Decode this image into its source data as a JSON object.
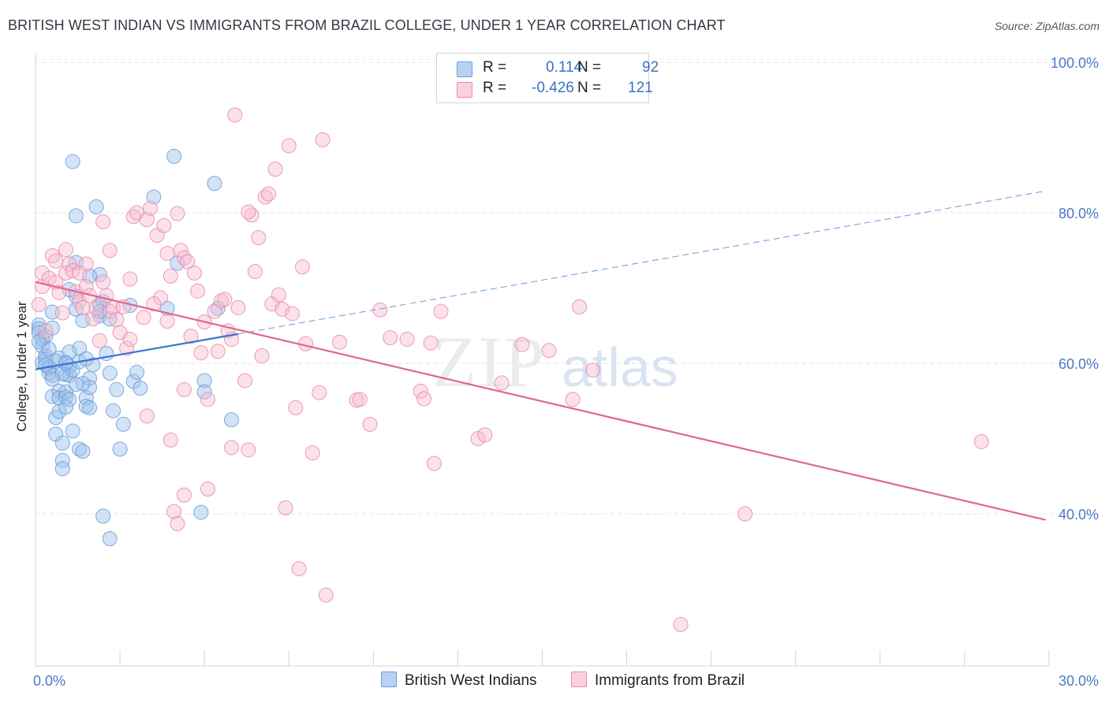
{
  "title": "BRITISH WEST INDIAN VS IMMIGRANTS FROM BRAZIL COLLEGE, UNDER 1 YEAR CORRELATION CHART",
  "source": "Source: ZipAtlas.com",
  "watermark": {
    "zip": "ZIP",
    "atlas": "atlas"
  },
  "legend": {
    "r_label": "R =",
    "n_label": "N =",
    "series": [
      {
        "r": "0.114",
        "n": "92",
        "color": "#9cc0ec",
        "stroke": "#6a9bdb"
      },
      {
        "r": "-0.426",
        "n": "121",
        "color": "#f7bcd0",
        "stroke": "#e98aa9"
      }
    ]
  },
  "bottom_legend": [
    "British West Indians",
    "Immigrants from Brazil"
  ],
  "chart_data": {
    "type": "scatter",
    "title": "BRITISH WEST INDIAN VS IMMIGRANTS FROM BRAZIL COLLEGE, UNDER 1 YEAR CORRELATION CHART",
    "xlabel": "",
    "ylabel": "College, Under 1 year",
    "xlim": [
      0,
      30
    ],
    "ylim": [
      20,
      102
    ],
    "x_tick_labels": [
      "0.0%",
      "30.0%"
    ],
    "y_ticks": [
      40,
      60,
      80,
      100
    ],
    "y_tick_labels": [
      "40.0%",
      "60.0%",
      "80.0%",
      "100.0%"
    ],
    "grid": true,
    "legend_position": "top-center",
    "series": [
      {
        "name": "British West Indians",
        "color": "#6a9bdb",
        "fill": "#9cc0ec",
        "trend": {
          "x": [
            0,
            6
          ],
          "y": [
            59.2,
            63.9
          ],
          "dashed_extension": {
            "x": [
              6,
              29.9
            ],
            "y": [
              63.9,
              82.9
            ]
          }
        },
        "points": [
          [
            0.1,
            65.1
          ],
          [
            0.1,
            64.6
          ],
          [
            0.1,
            64.1
          ],
          [
            0.2,
            62.3
          ],
          [
            0.2,
            60.1
          ],
          [
            0.3,
            63.6
          ],
          [
            0.3,
            61.0
          ],
          [
            0.3,
            60.5
          ],
          [
            0.4,
            59.4
          ],
          [
            0.4,
            58.7
          ],
          [
            0.5,
            64.7
          ],
          [
            0.5,
            58.4
          ],
          [
            0.5,
            55.6
          ],
          [
            0.6,
            52.8
          ],
          [
            0.6,
            50.6
          ],
          [
            0.7,
            60.7
          ],
          [
            0.7,
            56.3
          ],
          [
            0.7,
            55.4
          ],
          [
            0.7,
            53.6
          ],
          [
            0.8,
            49.4
          ],
          [
            0.8,
            47.1
          ],
          [
            0.8,
            46.0
          ],
          [
            0.9,
            60.1
          ],
          [
            0.9,
            58.5
          ],
          [
            0.9,
            56.2
          ],
          [
            0.9,
            55.5
          ],
          [
            0.9,
            54.2
          ],
          [
            1.0,
            59.6
          ],
          [
            1.0,
            58.4
          ],
          [
            1.0,
            55.2
          ],
          [
            1.1,
            51.0
          ],
          [
            1.1,
            59.1
          ],
          [
            1.2,
            67.2
          ],
          [
            1.2,
            68.9
          ],
          [
            1.2,
            73.4
          ],
          [
            1.3,
            62.0
          ],
          [
            1.3,
            60.2
          ],
          [
            1.3,
            48.6
          ],
          [
            1.4,
            65.7
          ],
          [
            1.4,
            48.3
          ],
          [
            1.5,
            55.4
          ],
          [
            1.5,
            54.3
          ],
          [
            1.6,
            58.0
          ],
          [
            1.6,
            56.8
          ],
          [
            1.6,
            54.1
          ],
          [
            1.7,
            59.8
          ],
          [
            1.8,
            80.8
          ],
          [
            1.9,
            71.8
          ],
          [
            1.9,
            67.8
          ],
          [
            1.9,
            66.3
          ],
          [
            2.0,
            68.2
          ],
          [
            2.1,
            61.3
          ],
          [
            2.2,
            58.7
          ],
          [
            2.2,
            65.9
          ],
          [
            2.3,
            53.7
          ],
          [
            2.4,
            56.5
          ],
          [
            2.5,
            48.6
          ],
          [
            2.6,
            51.9
          ],
          [
            2.8,
            67.7
          ],
          [
            2.9,
            57.6
          ],
          [
            3.0,
            58.8
          ],
          [
            3.1,
            56.7
          ],
          [
            3.5,
            82.1
          ],
          [
            3.9,
            67.3
          ],
          [
            4.1,
            87.5
          ],
          [
            4.2,
            73.3
          ],
          [
            4.9,
            40.2
          ],
          [
            5.0,
            57.7
          ],
          [
            5.0,
            56.2
          ],
          [
            5.3,
            83.9
          ],
          [
            5.4,
            67.3
          ],
          [
            5.8,
            52.5
          ],
          [
            1.2,
            79.6
          ],
          [
            1.1,
            86.8
          ],
          [
            0.5,
            66.8
          ],
          [
            1.0,
            69.8
          ],
          [
            1.4,
            57.3
          ],
          [
            1.6,
            71.6
          ],
          [
            2.0,
            39.7
          ],
          [
            2.2,
            36.7
          ],
          [
            0.2,
            63.2
          ],
          [
            0.6,
            60.3
          ],
          [
            0.8,
            58.6
          ],
          [
            1.2,
            57.2
          ],
          [
            1.0,
            61.5
          ],
          [
            0.3,
            59.8
          ],
          [
            0.4,
            61.9
          ],
          [
            1.5,
            60.6
          ],
          [
            1.9,
            66.9
          ],
          [
            0.1,
            62.9
          ],
          [
            0.9,
            60.0
          ],
          [
            0.5,
            57.9
          ]
        ]
      },
      {
        "name": "Immigrants from Brazil",
        "color": "#e98aa9",
        "fill": "#f7bcd0",
        "trend": {
          "x": [
            0,
            29.9
          ],
          "y": [
            70.8,
            39.2
          ]
        },
        "points": [
          [
            0.1,
            67.8
          ],
          [
            0.2,
            70.2
          ],
          [
            0.2,
            72.0
          ],
          [
            0.3,
            64.3
          ],
          [
            0.4,
            71.3
          ],
          [
            0.5,
            74.3
          ],
          [
            0.6,
            70.8
          ],
          [
            0.7,
            69.4
          ],
          [
            0.8,
            66.7
          ],
          [
            0.9,
            72.0
          ],
          [
            1.0,
            73.2
          ],
          [
            1.1,
            72.3
          ],
          [
            1.2,
            69.5
          ],
          [
            1.3,
            68.2
          ],
          [
            1.4,
            67.4
          ],
          [
            1.5,
            70.2
          ],
          [
            1.6,
            69.0
          ],
          [
            1.7,
            65.9
          ],
          [
            1.8,
            67.3
          ],
          [
            1.9,
            63.0
          ],
          [
            2.0,
            70.8
          ],
          [
            2.1,
            69.0
          ],
          [
            2.2,
            66.9
          ],
          [
            2.3,
            67.4
          ],
          [
            2.4,
            65.8
          ],
          [
            2.5,
            64.1
          ],
          [
            2.6,
            67.5
          ],
          [
            2.7,
            62.0
          ],
          [
            2.8,
            71.2
          ],
          [
            2.9,
            79.5
          ],
          [
            3.0,
            80.0
          ],
          [
            3.2,
            66.1
          ],
          [
            3.3,
            79.1
          ],
          [
            3.4,
            80.6
          ],
          [
            3.6,
            77.0
          ],
          [
            3.7,
            68.7
          ],
          [
            3.8,
            78.3
          ],
          [
            3.9,
            65.6
          ],
          [
            4.0,
            71.6
          ],
          [
            4.1,
            40.3
          ],
          [
            4.2,
            79.9
          ],
          [
            4.3,
            75.0
          ],
          [
            4.4,
            74.0
          ],
          [
            4.5,
            73.5
          ],
          [
            4.6,
            63.6
          ],
          [
            4.7,
            72.0
          ],
          [
            4.8,
            69.6
          ],
          [
            4.9,
            61.4
          ],
          [
            5.0,
            65.5
          ],
          [
            5.1,
            55.2
          ],
          [
            5.3,
            66.9
          ],
          [
            5.4,
            61.6
          ],
          [
            5.5,
            68.3
          ],
          [
            5.6,
            68.5
          ],
          [
            5.7,
            64.3
          ],
          [
            5.8,
            63.2
          ],
          [
            5.9,
            93.0
          ],
          [
            6.0,
            67.4
          ],
          [
            6.2,
            57.7
          ],
          [
            6.3,
            48.5
          ],
          [
            6.4,
            79.7
          ],
          [
            6.5,
            72.2
          ],
          [
            6.6,
            76.7
          ],
          [
            6.7,
            61.0
          ],
          [
            6.8,
            82.1
          ],
          [
            6.9,
            82.5
          ],
          [
            7.0,
            67.9
          ],
          [
            7.1,
            85.8
          ],
          [
            7.2,
            69.1
          ],
          [
            7.3,
            67.2
          ],
          [
            7.4,
            40.8
          ],
          [
            7.5,
            88.9
          ],
          [
            7.6,
            66.6
          ],
          [
            7.7,
            54.1
          ],
          [
            7.8,
            32.7
          ],
          [
            7.9,
            72.8
          ],
          [
            8.0,
            62.6
          ],
          [
            8.2,
            48.1
          ],
          [
            8.4,
            56.1
          ],
          [
            8.5,
            89.7
          ],
          [
            8.6,
            29.2
          ],
          [
            9.0,
            62.8
          ],
          [
            9.5,
            55.1
          ],
          [
            9.6,
            55.2
          ],
          [
            9.9,
            51.9
          ],
          [
            10.2,
            67.1
          ],
          [
            10.5,
            63.4
          ],
          [
            11.0,
            63.2
          ],
          [
            11.4,
            56.3
          ],
          [
            11.5,
            55.3
          ],
          [
            11.7,
            62.7
          ],
          [
            11.8,
            46.7
          ],
          [
            12.0,
            66.9
          ],
          [
            13.1,
            50.0
          ],
          [
            13.3,
            50.5
          ],
          [
            13.8,
            57.4
          ],
          [
            14.4,
            62.5
          ],
          [
            15.2,
            61.7
          ],
          [
            15.9,
            55.2
          ],
          [
            16.1,
            67.5
          ],
          [
            16.5,
            59.1
          ],
          [
            19.1,
            25.3
          ],
          [
            21.0,
            40.0
          ],
          [
            28.0,
            49.6
          ],
          [
            0.9,
            75.1
          ],
          [
            1.5,
            73.2
          ],
          [
            2.2,
            75.0
          ],
          [
            3.3,
            53.0
          ],
          [
            3.9,
            74.6
          ],
          [
            4.4,
            56.5
          ],
          [
            4.0,
            49.8
          ],
          [
            4.2,
            38.7
          ],
          [
            4.4,
            42.5
          ],
          [
            5.1,
            43.3
          ],
          [
            5.8,
            48.8
          ],
          [
            2.0,
            78.8
          ],
          [
            1.3,
            72.0
          ],
          [
            0.6,
            73.6
          ],
          [
            2.8,
            63.2
          ],
          [
            3.5,
            67.9
          ],
          [
            6.3,
            80.1
          ]
        ]
      }
    ]
  }
}
